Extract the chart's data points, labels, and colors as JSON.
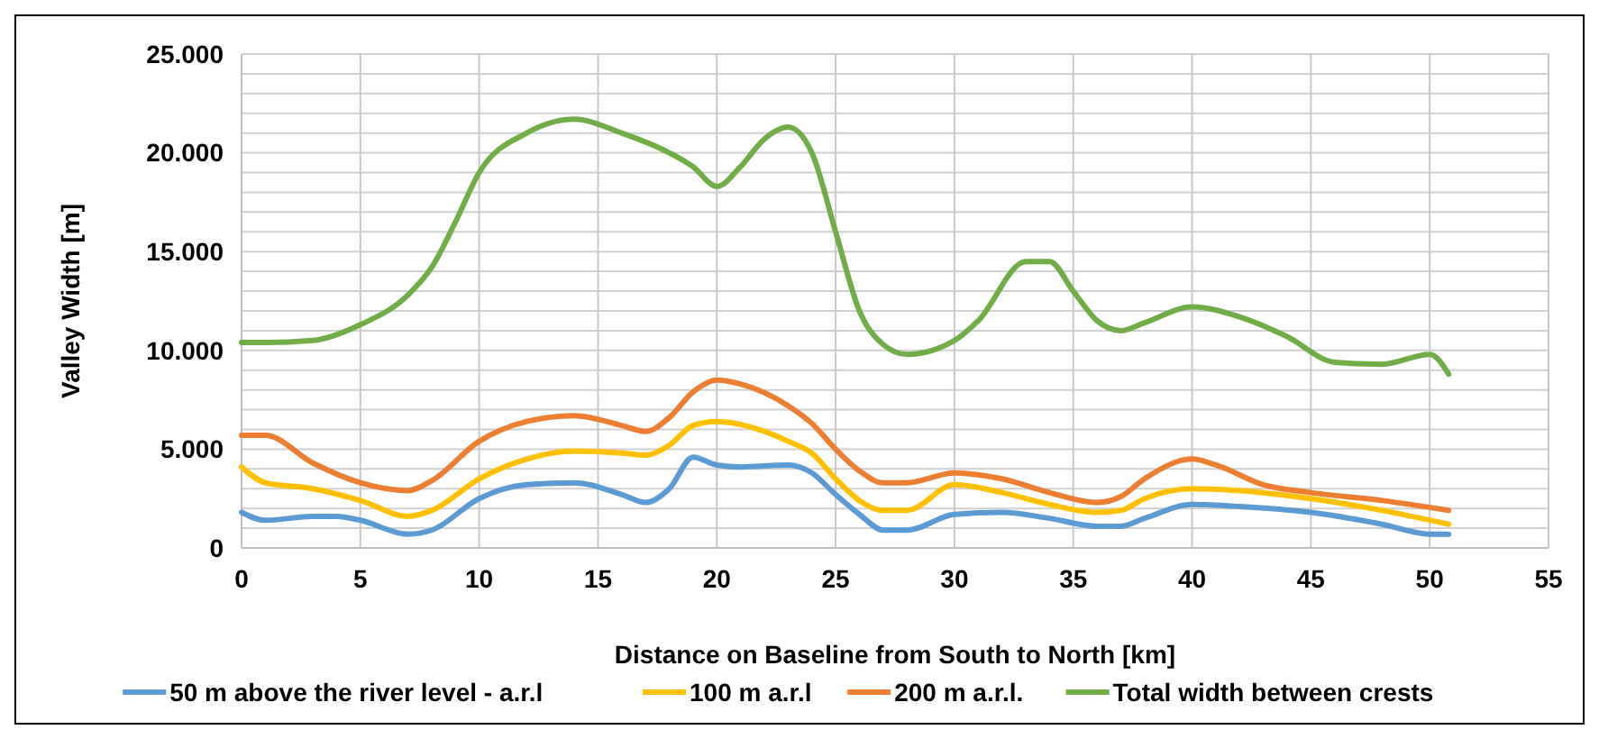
{
  "chart_data": {
    "type": "line",
    "xlabel": "Distance on Baseline from South to North [km]",
    "ylabel": "Valley Width [m]",
    "xlim": [
      0,
      55
    ],
    "xticks": [
      0,
      5,
      10,
      15,
      20,
      25,
      30,
      35,
      40,
      45,
      50,
      55
    ],
    "ylim": [
      0,
      25000
    ],
    "yticks": [
      {
        "value": 0,
        "label": "0"
      },
      {
        "value": 1000,
        "label": null
      },
      {
        "value": 2000,
        "label": null
      },
      {
        "value": 3000,
        "label": null
      },
      {
        "value": 4000,
        "label": null
      },
      {
        "value": 5000,
        "label": "5.000"
      },
      {
        "value": 6000,
        "label": null
      },
      {
        "value": 7000,
        "label": null
      },
      {
        "value": 8000,
        "label": null
      },
      {
        "value": 9000,
        "label": null
      },
      {
        "value": 10000,
        "label": "10.000"
      },
      {
        "value": 11000,
        "label": null
      },
      {
        "value": 12000,
        "label": null
      },
      {
        "value": 13000,
        "label": null
      },
      {
        "value": 14000,
        "label": null
      },
      {
        "value": 15000,
        "label": "15.000"
      },
      {
        "value": 16000,
        "label": null
      },
      {
        "value": 17000,
        "label": null
      },
      {
        "value": 18000,
        "label": null
      },
      {
        "value": 19000,
        "label": null
      },
      {
        "value": 20000,
        "label": "20.000"
      },
      {
        "value": 21000,
        "label": null
      },
      {
        "value": 22000,
        "label": null
      },
      {
        "value": 23000,
        "label": null
      },
      {
        "value": 24000,
        "label": null
      },
      {
        "value": 25000,
        "label": "25.000"
      }
    ],
    "grid": true,
    "legend": "bottom",
    "marker": "none",
    "line_style": "solid",
    "series": [
      {
        "name": "50 m above the river level - a.r.l",
        "color": "#5b9bd5",
        "x": [
          0,
          1,
          3,
          4,
          5,
          7,
          8,
          10,
          12,
          14,
          16,
          17,
          18,
          19,
          20,
          21,
          23,
          24,
          25,
          26,
          27,
          28,
          30,
          32,
          34,
          36,
          37,
          38,
          40,
          42,
          45,
          48,
          50,
          50.8
        ],
        "values": [
          1800,
          1400,
          1600,
          1600,
          1400,
          700,
          900,
          2500,
          3200,
          3300,
          2700,
          2300,
          3000,
          4600,
          4200,
          4100,
          4200,
          3800,
          2700,
          1700,
          900,
          900,
          1700,
          1800,
          1500,
          1100,
          1100,
          1500,
          2200,
          2100,
          1800,
          1200,
          700,
          700
        ]
      },
      {
        "name": "100 m a.r.l",
        "color": "#ffc000",
        "x": [
          0,
          1,
          3,
          5,
          7,
          8,
          10,
          12,
          14,
          16,
          17,
          18,
          19,
          20,
          22,
          23,
          24,
          25,
          26,
          27,
          28,
          30,
          32,
          34,
          36,
          37,
          38,
          40,
          42,
          45,
          48,
          50.8
        ],
        "values": [
          4100,
          3300,
          3000,
          2400,
          1600,
          1900,
          3500,
          4500,
          4900,
          4800,
          4700,
          5200,
          6200,
          6400,
          5900,
          5400,
          4800,
          3500,
          2400,
          1900,
          1900,
          3200,
          2800,
          2200,
          1800,
          1900,
          2500,
          3000,
          2900,
          2500,
          1900,
          1200
        ]
      },
      {
        "name": "200 m a.r.l.",
        "color": "#ed7d31",
        "x": [
          0,
          1,
          3,
          5,
          7,
          8,
          10,
          12,
          14,
          16,
          17,
          18,
          19,
          20,
          21,
          23,
          24,
          25,
          26,
          27,
          28,
          30,
          32,
          34,
          36,
          37,
          38,
          40,
          41,
          43,
          45,
          48,
          50.8
        ],
        "values": [
          5700,
          5700,
          4300,
          3300,
          2900,
          3400,
          5400,
          6400,
          6700,
          6200,
          5900,
          6600,
          7900,
          8500,
          8300,
          7200,
          6300,
          5000,
          3900,
          3300,
          3300,
          3800,
          3500,
          2800,
          2300,
          2600,
          3500,
          4500,
          4200,
          3200,
          2800,
          2400,
          1900
        ]
      },
      {
        "name": "Total width between crests",
        "color": "#70ad47",
        "x": [
          0,
          1,
          3,
          5,
          7,
          8,
          9,
          10,
          12,
          14,
          16,
          18,
          19,
          20,
          21,
          22,
          23,
          24,
          25,
          26,
          27,
          28,
          30,
          31,
          33,
          34,
          35,
          36,
          37,
          38,
          40,
          42,
          44,
          46,
          48,
          50,
          50.8
        ],
        "values": [
          10400,
          10400,
          10500,
          11300,
          12800,
          14200,
          16500,
          19000,
          21000,
          21700,
          21000,
          20000,
          19300,
          18300,
          19300,
          20700,
          21300,
          20000,
          16000,
          12000,
          10300,
          9800,
          10500,
          11500,
          14500,
          14500,
          13000,
          11500,
          11000,
          11400,
          12200,
          11700,
          10700,
          9400,
          9300,
          9800,
          8800
        ]
      }
    ]
  }
}
